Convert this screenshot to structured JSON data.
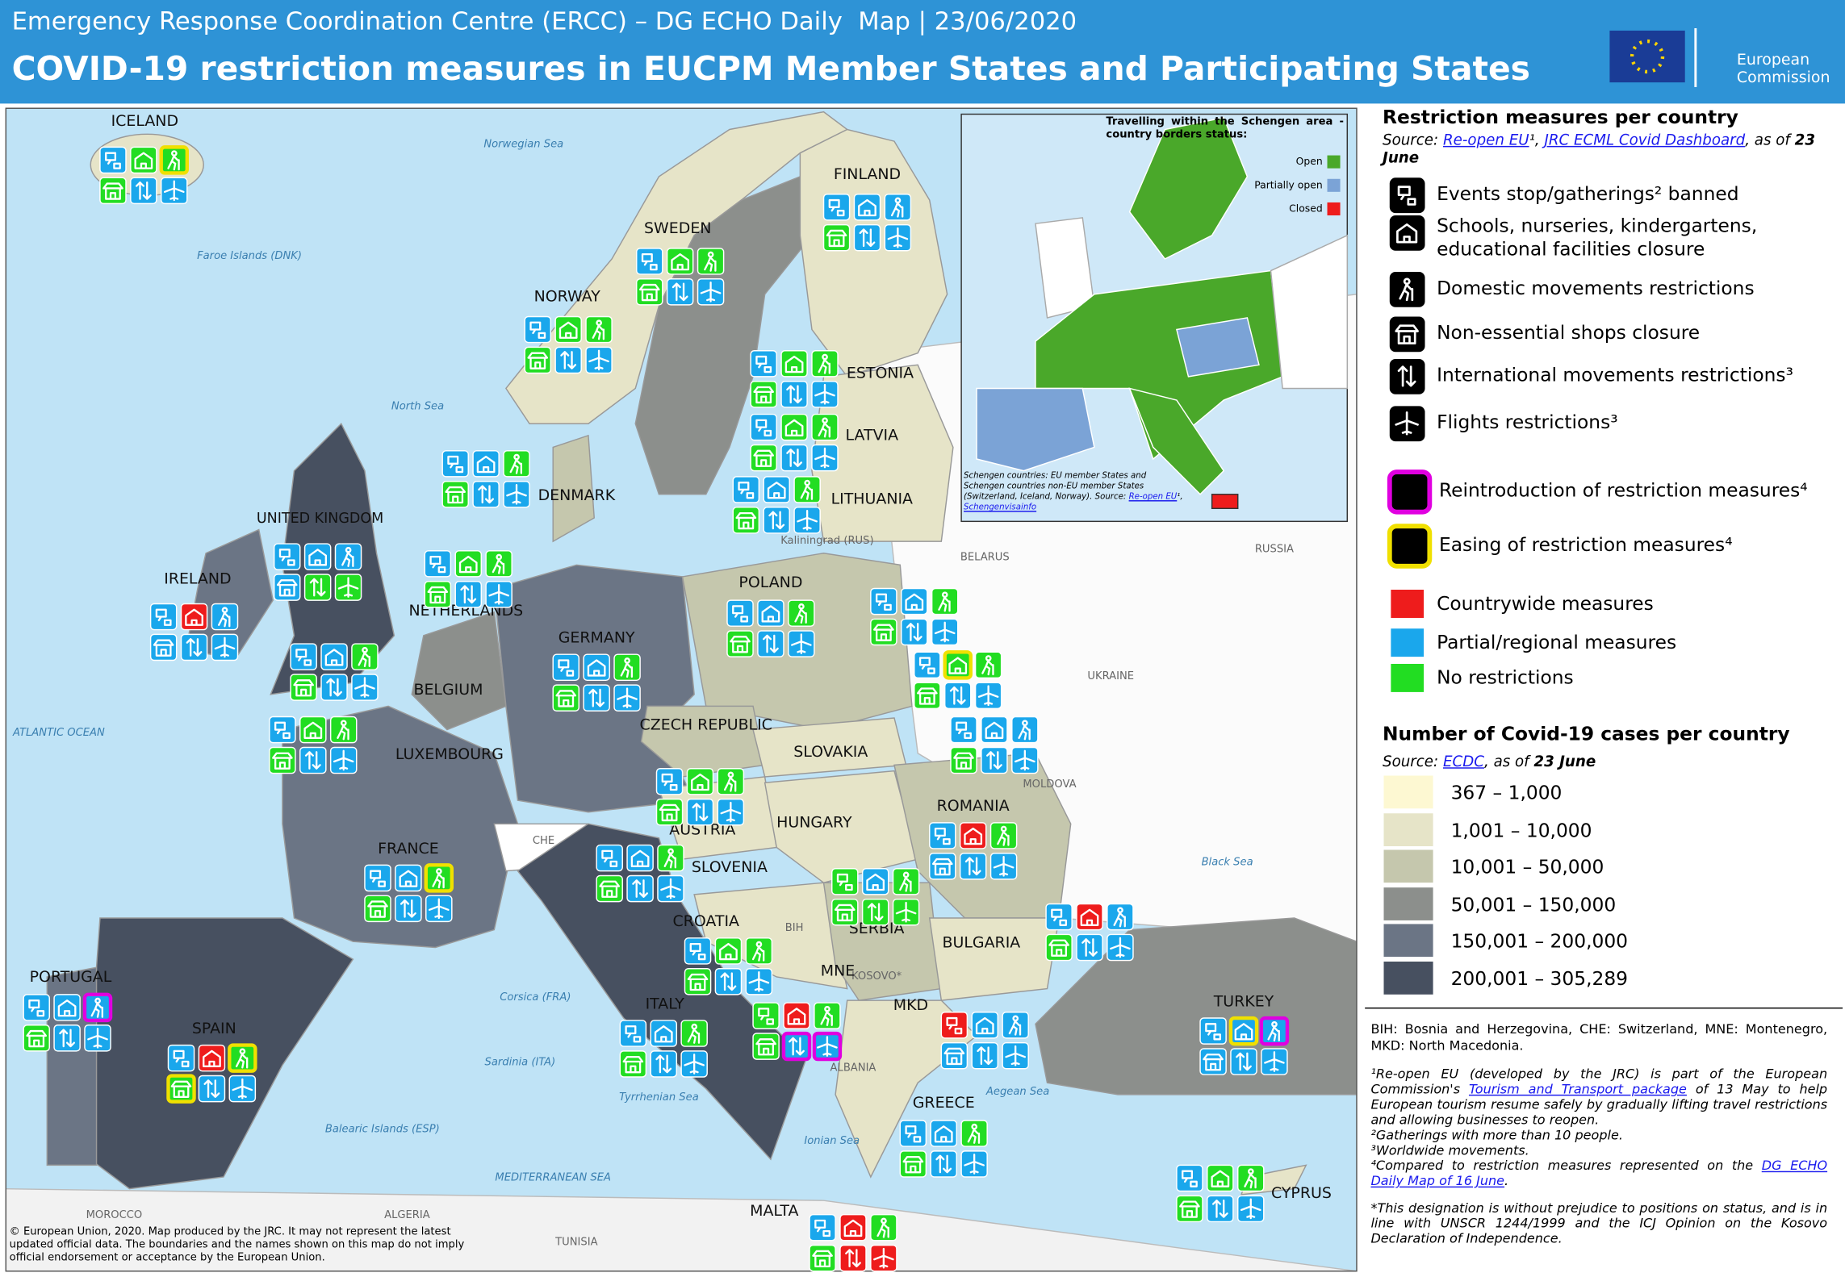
{
  "header": {
    "agency": "Emergency Response Coordination Centre (ERCC) – DG ECHO Daily  Map | 23/06/2020",
    "title": "COVID-19 restriction measures in EUCPM Member States and Participating States",
    "logo": [
      "European",
      "Commission"
    ]
  },
  "map": {
    "countries": [
      {
        "name": "ICELAND",
        "measures": [
          "#1aa7ec",
          "#22dd22",
          "#22dd22",
          "#22dd22",
          "#1aa7ec",
          "#1aa7ec"
        ],
        "frames": [
          null,
          null,
          "#f0e000",
          null,
          null,
          null
        ]
      },
      {
        "name": "FINLAND",
        "measures": [
          "#1aa7ec",
          "#1aa7ec",
          "#1aa7ec",
          "#22dd22",
          "#1aa7ec",
          "#1aa7ec"
        ],
        "frames": [
          null,
          null,
          null,
          null,
          null,
          null
        ]
      },
      {
        "name": "SWEDEN",
        "measures": [
          "#1aa7ec",
          "#22dd22",
          "#22dd22",
          "#22dd22",
          "#1aa7ec",
          "#1aa7ec"
        ],
        "frames": [
          null,
          null,
          null,
          null,
          null,
          null
        ]
      },
      {
        "name": "NORWAY",
        "measures": [
          "#1aa7ec",
          "#22dd22",
          "#22dd22",
          "#22dd22",
          "#1aa7ec",
          "#1aa7ec"
        ],
        "frames": [
          null,
          null,
          null,
          null,
          null,
          null
        ]
      },
      {
        "name": "ESTONIA",
        "measures": [
          "#1aa7ec",
          "#22dd22",
          "#22dd22",
          "#22dd22",
          "#1aa7ec",
          "#1aa7ec"
        ],
        "frames": [
          null,
          null,
          null,
          null,
          null,
          null
        ]
      },
      {
        "name": "LATVIA",
        "measures": [
          "#1aa7ec",
          "#22dd22",
          "#22dd22",
          "#22dd22",
          "#1aa7ec",
          "#1aa7ec"
        ],
        "frames": [
          null,
          null,
          null,
          null,
          null,
          null
        ]
      },
      {
        "name": "LITHUANIA",
        "measures": [
          "#1aa7ec",
          "#1aa7ec",
          "#22dd22",
          "#22dd22",
          "#1aa7ec",
          "#1aa7ec"
        ],
        "frames": [
          null,
          null,
          null,
          null,
          null,
          null
        ]
      },
      {
        "name": "DENMARK",
        "measures": [
          "#1aa7ec",
          "#1aa7ec",
          "#22dd22",
          "#22dd22",
          "#1aa7ec",
          "#1aa7ec"
        ],
        "frames": [
          null,
          null,
          null,
          null,
          null,
          null
        ]
      },
      {
        "name": "UNITED KINGDOM",
        "measures": [
          "#1aa7ec",
          "#1aa7ec",
          "#1aa7ec",
          "#1aa7ec",
          "#22dd22",
          "#22dd22"
        ],
        "frames": [
          null,
          null,
          null,
          null,
          null,
          null
        ]
      },
      {
        "name": "NETHERLANDS",
        "measures": [
          "#1aa7ec",
          "#22dd22",
          "#22dd22",
          "#22dd22",
          "#1aa7ec",
          "#1aa7ec"
        ],
        "frames": [
          null,
          null,
          null,
          null,
          null,
          null
        ]
      },
      {
        "name": "IRELAND",
        "measures": [
          "#1aa7ec",
          "#ee1c1c",
          "#1aa7ec",
          "#1aa7ec",
          "#1aa7ec",
          "#1aa7ec"
        ],
        "frames": [
          null,
          null,
          null,
          null,
          null,
          null
        ]
      },
      {
        "name": "BELGIUM",
        "measures": [
          "#1aa7ec",
          "#1aa7ec",
          "#22dd22",
          "#22dd22",
          "#1aa7ec",
          "#1aa7ec"
        ],
        "frames": [
          null,
          null,
          null,
          null,
          null,
          null
        ]
      },
      {
        "name": "LUXEMBOURG",
        "measures": [
          "#1aa7ec",
          "#22dd22",
          "#22dd22",
          "#22dd22",
          "#1aa7ec",
          "#1aa7ec"
        ],
        "frames": [
          null,
          null,
          null,
          null,
          null,
          null
        ]
      },
      {
        "name": "GERMANY",
        "measures": [
          "#1aa7ec",
          "#1aa7ec",
          "#22dd22",
          "#22dd22",
          "#1aa7ec",
          "#1aa7ec"
        ],
        "frames": [
          null,
          null,
          null,
          null,
          null,
          null
        ]
      },
      {
        "name": "POLAND",
        "measures": [
          "#1aa7ec",
          "#1aa7ec",
          "#22dd22",
          "#22dd22",
          "#1aa7ec",
          "#1aa7ec"
        ],
        "frames": [
          null,
          null,
          null,
          null,
          null,
          null
        ]
      },
      {
        "name": "CZECH REPUBLIC",
        "measures": [
          "#1aa7ec",
          "#1aa7ec",
          "#22dd22",
          "#22dd22",
          "#1aa7ec",
          "#1aa7ec"
        ],
        "frames": [
          null,
          null,
          null,
          null,
          null,
          null
        ]
      },
      {
        "name": "SLOVAKIA",
        "measures": [
          "#1aa7ec",
          "#22dd22",
          "#22dd22",
          "#22dd22",
          "#1aa7ec",
          "#1aa7ec"
        ],
        "frames": [
          null,
          "#f0e000",
          null,
          null,
          null,
          null
        ]
      },
      {
        "name": "HUNGARY",
        "measures": [
          "#1aa7ec",
          "#1aa7ec",
          "#1aa7ec",
          "#22dd22",
          "#1aa7ec",
          "#1aa7ec"
        ],
        "frames": [
          null,
          null,
          null,
          null,
          null,
          null
        ]
      },
      {
        "name": "AUSTRIA",
        "measures": [
          "#1aa7ec",
          "#22dd22",
          "#22dd22",
          "#22dd22",
          "#1aa7ec",
          "#1aa7ec"
        ],
        "frames": [
          null,
          null,
          null,
          null,
          null,
          null
        ]
      },
      {
        "name": "SLOVENIA",
        "measures": [
          "#1aa7ec",
          "#1aa7ec",
          "#22dd22",
          "#22dd22",
          "#1aa7ec",
          "#1aa7ec"
        ],
        "frames": [
          null,
          null,
          null,
          null,
          null,
          null
        ]
      },
      {
        "name": "ROMANIA",
        "measures": [
          "#1aa7ec",
          "#ee1c1c",
          "#22dd22",
          "#1aa7ec",
          "#1aa7ec",
          "#1aa7ec"
        ],
        "frames": [
          null,
          null,
          null,
          null,
          null,
          null
        ]
      },
      {
        "name": "FRANCE",
        "measures": [
          "#1aa7ec",
          "#1aa7ec",
          "#22dd22",
          "#22dd22",
          "#1aa7ec",
          "#1aa7ec"
        ],
        "frames": [
          null,
          null,
          "#f0e000",
          null,
          null,
          null
        ]
      },
      {
        "name": "CROATIA",
        "measures": [
          "#1aa7ec",
          "#22dd22",
          "#22dd22",
          "#22dd22",
          "#1aa7ec",
          "#1aa7ec"
        ],
        "frames": [
          null,
          null,
          null,
          null,
          null,
          null
        ]
      },
      {
        "name": "SERBIA",
        "measures": [
          "#22dd22",
          "#1aa7ec",
          "#22dd22",
          "#22dd22",
          "#22dd22",
          "#22dd22"
        ],
        "frames": [
          null,
          null,
          null,
          null,
          null,
          null
        ]
      },
      {
        "name": "BULGARIA",
        "measures": [
          "#1aa7ec",
          "#ee1c1c",
          "#1aa7ec",
          "#22dd22",
          "#1aa7ec",
          "#1aa7ec"
        ],
        "frames": [
          null,
          null,
          null,
          null,
          null,
          null
        ]
      },
      {
        "name": "PORTUGAL",
        "measures": [
          "#1aa7ec",
          "#1aa7ec",
          "#1aa7ec",
          "#22dd22",
          "#1aa7ec",
          "#1aa7ec"
        ],
        "frames": [
          null,
          null,
          "#e000e0",
          null,
          null,
          null
        ]
      },
      {
        "name": "SPAIN",
        "measures": [
          "#1aa7ec",
          "#ee1c1c",
          "#22dd22",
          "#22dd22",
          "#1aa7ec",
          "#1aa7ec"
        ],
        "frames": [
          null,
          null,
          "#f0e000",
          "#f0e000",
          null,
          null
        ]
      },
      {
        "name": "ITALY",
        "measures": [
          "#1aa7ec",
          "#1aa7ec",
          "#22dd22",
          "#22dd22",
          "#1aa7ec",
          "#1aa7ec"
        ],
        "frames": [
          null,
          null,
          null,
          null,
          null,
          null
        ]
      },
      {
        "name": "MNE",
        "measures": [
          "#22dd22",
          "#ee1c1c",
          "#22dd22",
          "#22dd22",
          "#1aa7ec",
          "#1aa7ec"
        ],
        "frames": [
          null,
          null,
          null,
          null,
          "#e000e0",
          "#e000e0"
        ]
      },
      {
        "name": "MKD",
        "measures": [
          "#ee1c1c",
          "#1aa7ec",
          "#1aa7ec",
          "#1aa7ec",
          "#1aa7ec",
          "#1aa7ec"
        ],
        "frames": [
          null,
          null,
          null,
          null,
          null,
          null
        ]
      },
      {
        "name": "TURKEY",
        "measures": [
          "#1aa7ec",
          "#1aa7ec",
          "#1aa7ec",
          "#1aa7ec",
          "#1aa7ec",
          "#1aa7ec"
        ],
        "frames": [
          null,
          "#f0e000",
          "#e000e0",
          null,
          null,
          null
        ]
      },
      {
        "name": "GREECE",
        "measures": [
          "#1aa7ec",
          "#1aa7ec",
          "#22dd22",
          "#22dd22",
          "#1aa7ec",
          "#1aa7ec"
        ],
        "frames": [
          null,
          null,
          null,
          null,
          null,
          null
        ]
      },
      {
        "name": "CYPRUS",
        "measures": [
          "#1aa7ec",
          "#22dd22",
          "#22dd22",
          "#22dd22",
          "#1aa7ec",
          "#1aa7ec"
        ],
        "frames": [
          null,
          null,
          null,
          null,
          null,
          null
        ]
      },
      {
        "name": "MALTA",
        "measures": [
          "#1aa7ec",
          "#ee1c1c",
          "#22dd22",
          "#22dd22",
          "#ee1c1c",
          "#ee1c1c"
        ],
        "frames": [
          null,
          null,
          null,
          null,
          null,
          null
        ]
      }
    ],
    "places": [
      {
        "name": "Norwegian Sea",
        "style": "sea"
      },
      {
        "name": "North Sea",
        "style": "sea"
      },
      {
        "name": "ATLANTIC OCEAN",
        "style": "sea"
      },
      {
        "name": "Faroe Islands (DNK)",
        "style": "sea"
      },
      {
        "name": "Kaliningrad (RUS)",
        "style": "land"
      },
      {
        "name": "BELARUS",
        "style": "land"
      },
      {
        "name": "RUSSIA",
        "style": "land"
      },
      {
        "name": "UKRAINE",
        "style": "land"
      },
      {
        "name": "MOLDOVA",
        "style": "land"
      },
      {
        "name": "CHE",
        "style": "land"
      },
      {
        "name": "BIH",
        "style": "land"
      },
      {
        "name": "KOSOVO*",
        "style": "land"
      },
      {
        "name": "ALBANIA",
        "style": "land"
      },
      {
        "name": "Corsica (FRA)",
        "style": "sea"
      },
      {
        "name": "Sardinia (ITA)",
        "style": "sea"
      },
      {
        "name": "Tyrrhenian Sea",
        "style": "sea"
      },
      {
        "name": "Ionian Sea",
        "style": "sea"
      },
      {
        "name": "Aegean Sea",
        "style": "sea"
      },
      {
        "name": "Black Sea",
        "style": "sea"
      },
      {
        "name": "Balearic Islands (ESP)",
        "style": "sea"
      },
      {
        "name": "MEDITERRANEAN SEA",
        "style": "sea"
      },
      {
        "name": "MOROCCO",
        "style": "land"
      },
      {
        "name": "ALGERIA",
        "style": "land"
      },
      {
        "name": "TUNISIA",
        "style": "land"
      }
    ],
    "copyright": "© European Union, 2020. Map produced by the JRC. It may not represent the latest updated official data. The boundaries and the names shown on this map do not imply official endorsement or acceptance by the European Union."
  },
  "inset": {
    "title": "Travelling within the Schengen area - country borders status:",
    "legend": [
      {
        "label": "Open",
        "color": "#4aa82a"
      },
      {
        "label": "Partially open",
        "color": "#7ba3d6"
      },
      {
        "label": "Closed",
        "color": "#ee1c1c"
      }
    ],
    "note": [
      {
        "text": "Schengen countries: EU member States and Schengen countries non-EU member States (Switzerland, Iceland, Norway). Source: "
      },
      {
        "text": "Re-open EU",
        "link": true
      },
      {
        "text": "¹, "
      },
      {
        "text": "Schengenvisainfo",
        "link": true
      }
    ]
  },
  "legend": {
    "title": "Restriction measures per country",
    "source": [
      {
        "text": "Source: "
      },
      {
        "text": "Re-open EU",
        "link": true
      },
      {
        "text": "¹, "
      },
      {
        "text": "JRC ECML Covid Dashboard",
        "link": true
      },
      {
        "text": ", as of "
      },
      {
        "text": "23 June",
        "bold": true
      }
    ],
    "measures": [
      "Events stop/gatherings² banned",
      "Schools, nurseries, kindergartens, educational facilities closure",
      "Domestic movements restrictions",
      "Non-essential shops closure",
      "International movements restrictions³",
      "Flights restrictions³"
    ],
    "frames": [
      {
        "label": "Reintroduction of restriction measures⁴",
        "color": "#e000e0"
      },
      {
        "label": "Easing of restriction measures⁴",
        "color": "#f0e000"
      }
    ],
    "scopes": [
      {
        "label": "Countrywide measures",
        "color": "#ee1c1c"
      },
      {
        "label": "Partial/regional measures",
        "color": "#1aa7ec"
      },
      {
        "label": "No restrictions",
        "color": "#22dd22"
      }
    ],
    "cases": {
      "title": "Number of Covid-19 cases per country",
      "source": [
        {
          "text": "Source: "
        },
        {
          "text": "ECDC",
          "link": true
        },
        {
          "text": ", as of "
        },
        {
          "text": "23 June",
          "bold": true
        }
      ],
      "bins": [
        {
          "label": "367 – 1,000",
          "color": "#fdf8d2"
        },
        {
          "label": "1,001 – 10,000",
          "color": "#e6e4c8"
        },
        {
          "label": "10,001 – 50,000",
          "color": "#c5c7ad"
        },
        {
          "label": "50,001 – 150,000",
          "color": "#8c8f8c"
        },
        {
          "label": "150,001 – 200,000",
          "color": "#6b7585"
        },
        {
          "label": "200,001 – 305,289",
          "color": "#475060"
        }
      ]
    }
  },
  "notes": {
    "abbreviations": "BIH: Bosnia and Herzegovina, CHE: Switzerland, MNE: Montenegro, MKD: North Macedonia.",
    "footnotes": [
      [
        {
          "text": "¹Re-open EU (developed by the JRC)  is part of the European Commission's "
        },
        {
          "text": "Tourism and Transport package",
          "link": true
        },
        {
          "text": " of 13 May to help European tourism resume safely by gradually lifting travel restrictions and allowing businesses to reopen."
        }
      ],
      [
        {
          "text": "²Gatherings with more than 10 people."
        }
      ],
      [
        {
          "text": "³Worldwide movements."
        }
      ],
      [
        {
          "text": "⁴Compared to restriction measures represented on the "
        },
        {
          "text": "DG ECHO Daily Map of 16 June",
          "link": true
        },
        {
          "text": "."
        }
      ],
      [
        {
          "text": "*This designation is without prejudice to positions on status, and is in line with UNSCR 1244/1999 and the ICJ Opinion on the Kosovo Declaration of Independence."
        }
      ]
    ]
  }
}
